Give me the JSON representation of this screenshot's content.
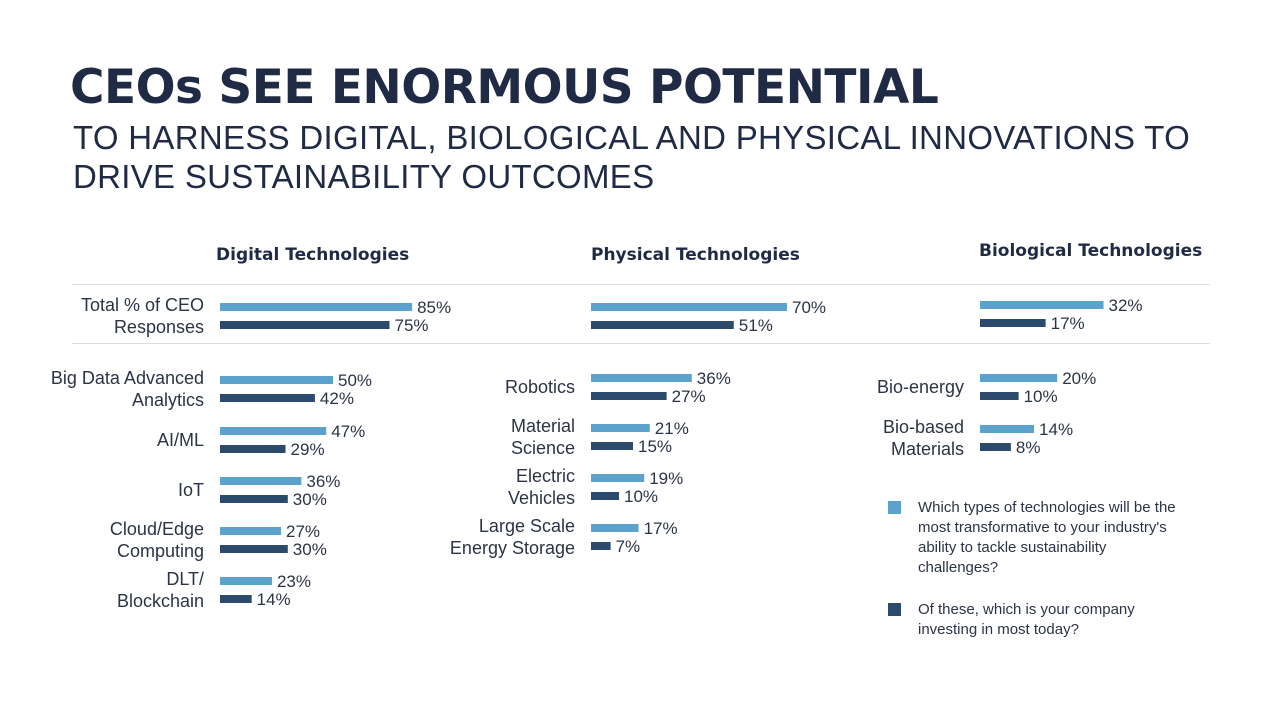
{
  "title": "CEOs SEE ENORMOUS POTENTIAL",
  "subtitle": "TO HARNESS DIGITAL, BIOLOGICAL AND PHYSICAL INNOVATIONS TO DRIVE SUSTAINABILITY OUTCOMES",
  "colors": {
    "light": "#5ba3cc",
    "dark": "#2c4a6b",
    "text": "#2b3446",
    "title": "#1f2a44"
  },
  "legend": [
    {
      "color": "#5ba3cc",
      "text": "Which types of technologies will be the most transformative to your industry's ability to tackle sustainability challenges?"
    },
    {
      "color": "#2c4a6b",
      "text": "Of these, which is your company investing in most today?"
    }
  ],
  "chart_data": [
    {
      "type": "bar",
      "orientation": "horizontal",
      "title": "Digital Technologies",
      "categories": [
        [
          "Total % of CEO",
          "Responses"
        ],
        [
          "Big Data Advanced",
          "Analytics"
        ],
        [
          "AI/ML"
        ],
        [
          "IoT"
        ],
        [
          "Cloud/Edge",
          "Computing"
        ],
        [
          "DLT/",
          "Blockchain"
        ]
      ],
      "series": [
        {
          "values": [
            85,
            50,
            47,
            36,
            27,
            23
          ]
        },
        {
          "values": [
            75,
            42,
            29,
            30,
            30,
            14
          ]
        }
      ],
      "value_suffix": "%"
    },
    {
      "type": "bar",
      "orientation": "horizontal",
      "title": "Physical Technologies",
      "categories": [
        [],
        [
          "Robotics"
        ],
        [
          "Material",
          "Science"
        ],
        [
          "Electric",
          "Vehicles"
        ],
        [
          "Large Scale",
          "Energy Storage"
        ]
      ],
      "series": [
        {
          "values": [
            70,
            36,
            21,
            19,
            17
          ]
        },
        {
          "values": [
            51,
            27,
            15,
            10,
            7
          ]
        }
      ],
      "value_suffix": "%"
    },
    {
      "type": "bar",
      "orientation": "horizontal",
      "title": "Biological Technologies",
      "categories": [
        [],
        [
          "Bio-energy"
        ],
        [
          "Bio-based",
          "Materials"
        ]
      ],
      "series": [
        {
          "values": [
            32,
            20,
            14
          ]
        },
        {
          "values": [
            17,
            10,
            8
          ]
        }
      ],
      "value_suffix": "%"
    }
  ]
}
